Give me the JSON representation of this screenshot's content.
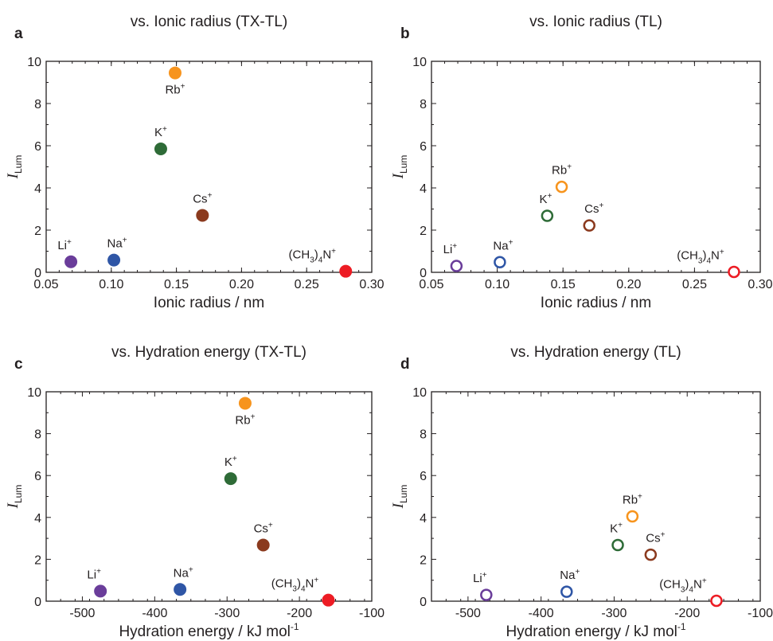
{
  "chart_data": [
    {
      "type": "scatter",
      "panel": "a",
      "title": "vs. Ionic radius (TX-TL)",
      "xlabel": "Ionic radius / nm",
      "ylabel_main": "I",
      "ylabel_sub": "Lum",
      "xlim": [
        0.05,
        0.3
      ],
      "ylim": [
        0,
        10
      ],
      "xticks": [
        "0.05",
        "0.10",
        "0.15",
        "0.20",
        "0.25",
        "0.30"
      ],
      "yticks": [
        "0",
        "2",
        "4",
        "6",
        "8",
        "10"
      ],
      "marker": "filled",
      "points": [
        {
          "label": "Li",
          "x": 0.069,
          "y": 0.5,
          "color": "#6a3d9a"
        },
        {
          "label": "Na",
          "x": 0.102,
          "y": 0.58,
          "color": "#2f56a6"
        },
        {
          "label": "K",
          "x": 0.138,
          "y": 5.85,
          "color": "#2e6b37"
        },
        {
          "label": "Rb",
          "x": 0.149,
          "y": 9.45,
          "color": "#f7941d"
        },
        {
          "label": "Cs",
          "x": 0.17,
          "y": 2.7,
          "color": "#8b3a1e"
        },
        {
          "label": "(CH3)4N",
          "x": 0.28,
          "y": 0.05,
          "color": "#ed1c24"
        }
      ]
    },
    {
      "type": "scatter",
      "panel": "b",
      "title": "vs. Ionic radius (TL)",
      "xlabel": "Ionic radius / nm",
      "ylabel_main": "I",
      "ylabel_sub": "Lum",
      "xlim": [
        0.05,
        0.3
      ],
      "ylim": [
        0,
        10
      ],
      "xticks": [
        "0.05",
        "0.10",
        "0.15",
        "0.20",
        "0.25",
        "0.30"
      ],
      "yticks": [
        "0",
        "2",
        "4",
        "6",
        "8",
        "10"
      ],
      "marker": "open",
      "points": [
        {
          "label": "Li",
          "x": 0.069,
          "y": 0.3,
          "color": "#6a3d9a"
        },
        {
          "label": "Na",
          "x": 0.102,
          "y": 0.48,
          "color": "#2f56a6"
        },
        {
          "label": "K",
          "x": 0.138,
          "y": 2.68,
          "color": "#2e6b37"
        },
        {
          "label": "Rb",
          "x": 0.149,
          "y": 4.05,
          "color": "#f7941d"
        },
        {
          "label": "Cs",
          "x": 0.17,
          "y": 2.22,
          "color": "#8b3a1e"
        },
        {
          "label": "(CH3)4N",
          "x": 0.28,
          "y": 0.02,
          "color": "#ed1c24"
        }
      ]
    },
    {
      "type": "scatter",
      "panel": "c",
      "title": "vs. Hydration energy (TX-TL)",
      "xlabel": "Hydration energy / kJ mol",
      "xlabel_sup": "-1",
      "ylabel_main": "I",
      "ylabel_sub": "Lum",
      "xlim": [
        -550,
        -100
      ],
      "ylim": [
        0,
        10
      ],
      "xticks": [
        "-500",
        "-400",
        "-300",
        "-200",
        "-100"
      ],
      "yticks": [
        "0",
        "2",
        "4",
        "6",
        "8",
        "10"
      ],
      "marker": "filled",
      "points": [
        {
          "label": "Li",
          "x": -475,
          "y": 0.48,
          "color": "#6a3d9a"
        },
        {
          "label": "Na",
          "x": -365,
          "y": 0.56,
          "color": "#2f56a6"
        },
        {
          "label": "K",
          "x": -295,
          "y": 5.85,
          "color": "#2e6b37"
        },
        {
          "label": "Rb",
          "x": -275,
          "y": 9.45,
          "color": "#f7941d"
        },
        {
          "label": "Cs",
          "x": -250,
          "y": 2.68,
          "color": "#8b3a1e"
        },
        {
          "label": "(CH3)4N",
          "x": -160,
          "y": 0.05,
          "color": "#ed1c24"
        }
      ]
    },
    {
      "type": "scatter",
      "panel": "d",
      "title": "vs. Hydration energy (TL)",
      "xlabel": "Hydration energy / kJ mol",
      "xlabel_sup": "-1",
      "ylabel_main": "I",
      "ylabel_sub": "Lum",
      "xlim": [
        -550,
        -100
      ],
      "ylim": [
        0,
        10
      ],
      "xticks": [
        "-500",
        "-400",
        "-300",
        "-200",
        "-100"
      ],
      "yticks": [
        "0",
        "2",
        "4",
        "6",
        "8",
        "10"
      ],
      "marker": "open",
      "points": [
        {
          "label": "Li",
          "x": -475,
          "y": 0.3,
          "color": "#6a3d9a"
        },
        {
          "label": "Na",
          "x": -365,
          "y": 0.45,
          "color": "#2f56a6"
        },
        {
          "label": "K",
          "x": -295,
          "y": 2.68,
          "color": "#2e6b37"
        },
        {
          "label": "Rb",
          "x": -275,
          "y": 4.05,
          "color": "#f7941d"
        },
        {
          "label": "Cs",
          "x": -250,
          "y": 2.22,
          "color": "#8b3a1e"
        },
        {
          "label": "(CH3)4N",
          "x": -160,
          "y": 0.02,
          "color": "#ed1c24"
        }
      ]
    }
  ]
}
